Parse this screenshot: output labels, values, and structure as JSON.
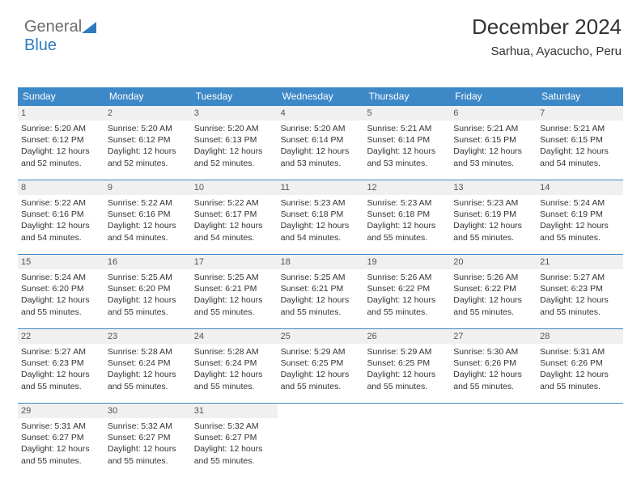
{
  "logo": {
    "text1": "General",
    "text2": "Blue",
    "icon_color": "#2f7bbf"
  },
  "header": {
    "month_year": "December 2024",
    "location": "Sarhua, Ayacucho, Peru"
  },
  "style": {
    "header_bg": "#3d88c7",
    "header_fg": "#ffffff",
    "date_bg": "#f0f0f0",
    "border_color": "#3d88c7",
    "body_fg": "#333333",
    "font_family": "Arial",
    "day_header_fontsize": 12,
    "date_fontsize": 11,
    "body_fontsize": 10.5
  },
  "calendar": {
    "type": "table",
    "columns": [
      "Sunday",
      "Monday",
      "Tuesday",
      "Wednesday",
      "Thursday",
      "Friday",
      "Saturday"
    ],
    "weeks": [
      [
        {
          "date": "1",
          "sunrise": "5:20 AM",
          "sunset": "6:12 PM",
          "daylight": "12 hours and 52 minutes."
        },
        {
          "date": "2",
          "sunrise": "5:20 AM",
          "sunset": "6:12 PM",
          "daylight": "12 hours and 52 minutes."
        },
        {
          "date": "3",
          "sunrise": "5:20 AM",
          "sunset": "6:13 PM",
          "daylight": "12 hours and 52 minutes."
        },
        {
          "date": "4",
          "sunrise": "5:20 AM",
          "sunset": "6:14 PM",
          "daylight": "12 hours and 53 minutes."
        },
        {
          "date": "5",
          "sunrise": "5:21 AM",
          "sunset": "6:14 PM",
          "daylight": "12 hours and 53 minutes."
        },
        {
          "date": "6",
          "sunrise": "5:21 AM",
          "sunset": "6:15 PM",
          "daylight": "12 hours and 53 minutes."
        },
        {
          "date": "7",
          "sunrise": "5:21 AM",
          "sunset": "6:15 PM",
          "daylight": "12 hours and 54 minutes."
        }
      ],
      [
        {
          "date": "8",
          "sunrise": "5:22 AM",
          "sunset": "6:16 PM",
          "daylight": "12 hours and 54 minutes."
        },
        {
          "date": "9",
          "sunrise": "5:22 AM",
          "sunset": "6:16 PM",
          "daylight": "12 hours and 54 minutes."
        },
        {
          "date": "10",
          "sunrise": "5:22 AM",
          "sunset": "6:17 PM",
          "daylight": "12 hours and 54 minutes."
        },
        {
          "date": "11",
          "sunrise": "5:23 AM",
          "sunset": "6:18 PM",
          "daylight": "12 hours and 54 minutes."
        },
        {
          "date": "12",
          "sunrise": "5:23 AM",
          "sunset": "6:18 PM",
          "daylight": "12 hours and 55 minutes."
        },
        {
          "date": "13",
          "sunrise": "5:23 AM",
          "sunset": "6:19 PM",
          "daylight": "12 hours and 55 minutes."
        },
        {
          "date": "14",
          "sunrise": "5:24 AM",
          "sunset": "6:19 PM",
          "daylight": "12 hours and 55 minutes."
        }
      ],
      [
        {
          "date": "15",
          "sunrise": "5:24 AM",
          "sunset": "6:20 PM",
          "daylight": "12 hours and 55 minutes."
        },
        {
          "date": "16",
          "sunrise": "5:25 AM",
          "sunset": "6:20 PM",
          "daylight": "12 hours and 55 minutes."
        },
        {
          "date": "17",
          "sunrise": "5:25 AM",
          "sunset": "6:21 PM",
          "daylight": "12 hours and 55 minutes."
        },
        {
          "date": "18",
          "sunrise": "5:25 AM",
          "sunset": "6:21 PM",
          "daylight": "12 hours and 55 minutes."
        },
        {
          "date": "19",
          "sunrise": "5:26 AM",
          "sunset": "6:22 PM",
          "daylight": "12 hours and 55 minutes."
        },
        {
          "date": "20",
          "sunrise": "5:26 AM",
          "sunset": "6:22 PM",
          "daylight": "12 hours and 55 minutes."
        },
        {
          "date": "21",
          "sunrise": "5:27 AM",
          "sunset": "6:23 PM",
          "daylight": "12 hours and 55 minutes."
        }
      ],
      [
        {
          "date": "22",
          "sunrise": "5:27 AM",
          "sunset": "6:23 PM",
          "daylight": "12 hours and 55 minutes."
        },
        {
          "date": "23",
          "sunrise": "5:28 AM",
          "sunset": "6:24 PM",
          "daylight": "12 hours and 55 minutes."
        },
        {
          "date": "24",
          "sunrise": "5:28 AM",
          "sunset": "6:24 PM",
          "daylight": "12 hours and 55 minutes."
        },
        {
          "date": "25",
          "sunrise": "5:29 AM",
          "sunset": "6:25 PM",
          "daylight": "12 hours and 55 minutes."
        },
        {
          "date": "26",
          "sunrise": "5:29 AM",
          "sunset": "6:25 PM",
          "daylight": "12 hours and 55 minutes."
        },
        {
          "date": "27",
          "sunrise": "5:30 AM",
          "sunset": "6:26 PM",
          "daylight": "12 hours and 55 minutes."
        },
        {
          "date": "28",
          "sunrise": "5:31 AM",
          "sunset": "6:26 PM",
          "daylight": "12 hours and 55 minutes."
        }
      ],
      [
        {
          "date": "29",
          "sunrise": "5:31 AM",
          "sunset": "6:27 PM",
          "daylight": "12 hours and 55 minutes."
        },
        {
          "date": "30",
          "sunrise": "5:32 AM",
          "sunset": "6:27 PM",
          "daylight": "12 hours and 55 minutes."
        },
        {
          "date": "31",
          "sunrise": "5:32 AM",
          "sunset": "6:27 PM",
          "daylight": "12 hours and 55 minutes."
        },
        null,
        null,
        null,
        null
      ]
    ],
    "labels": {
      "sunrise": "Sunrise:",
      "sunset": "Sunset:",
      "daylight": "Daylight:"
    }
  }
}
